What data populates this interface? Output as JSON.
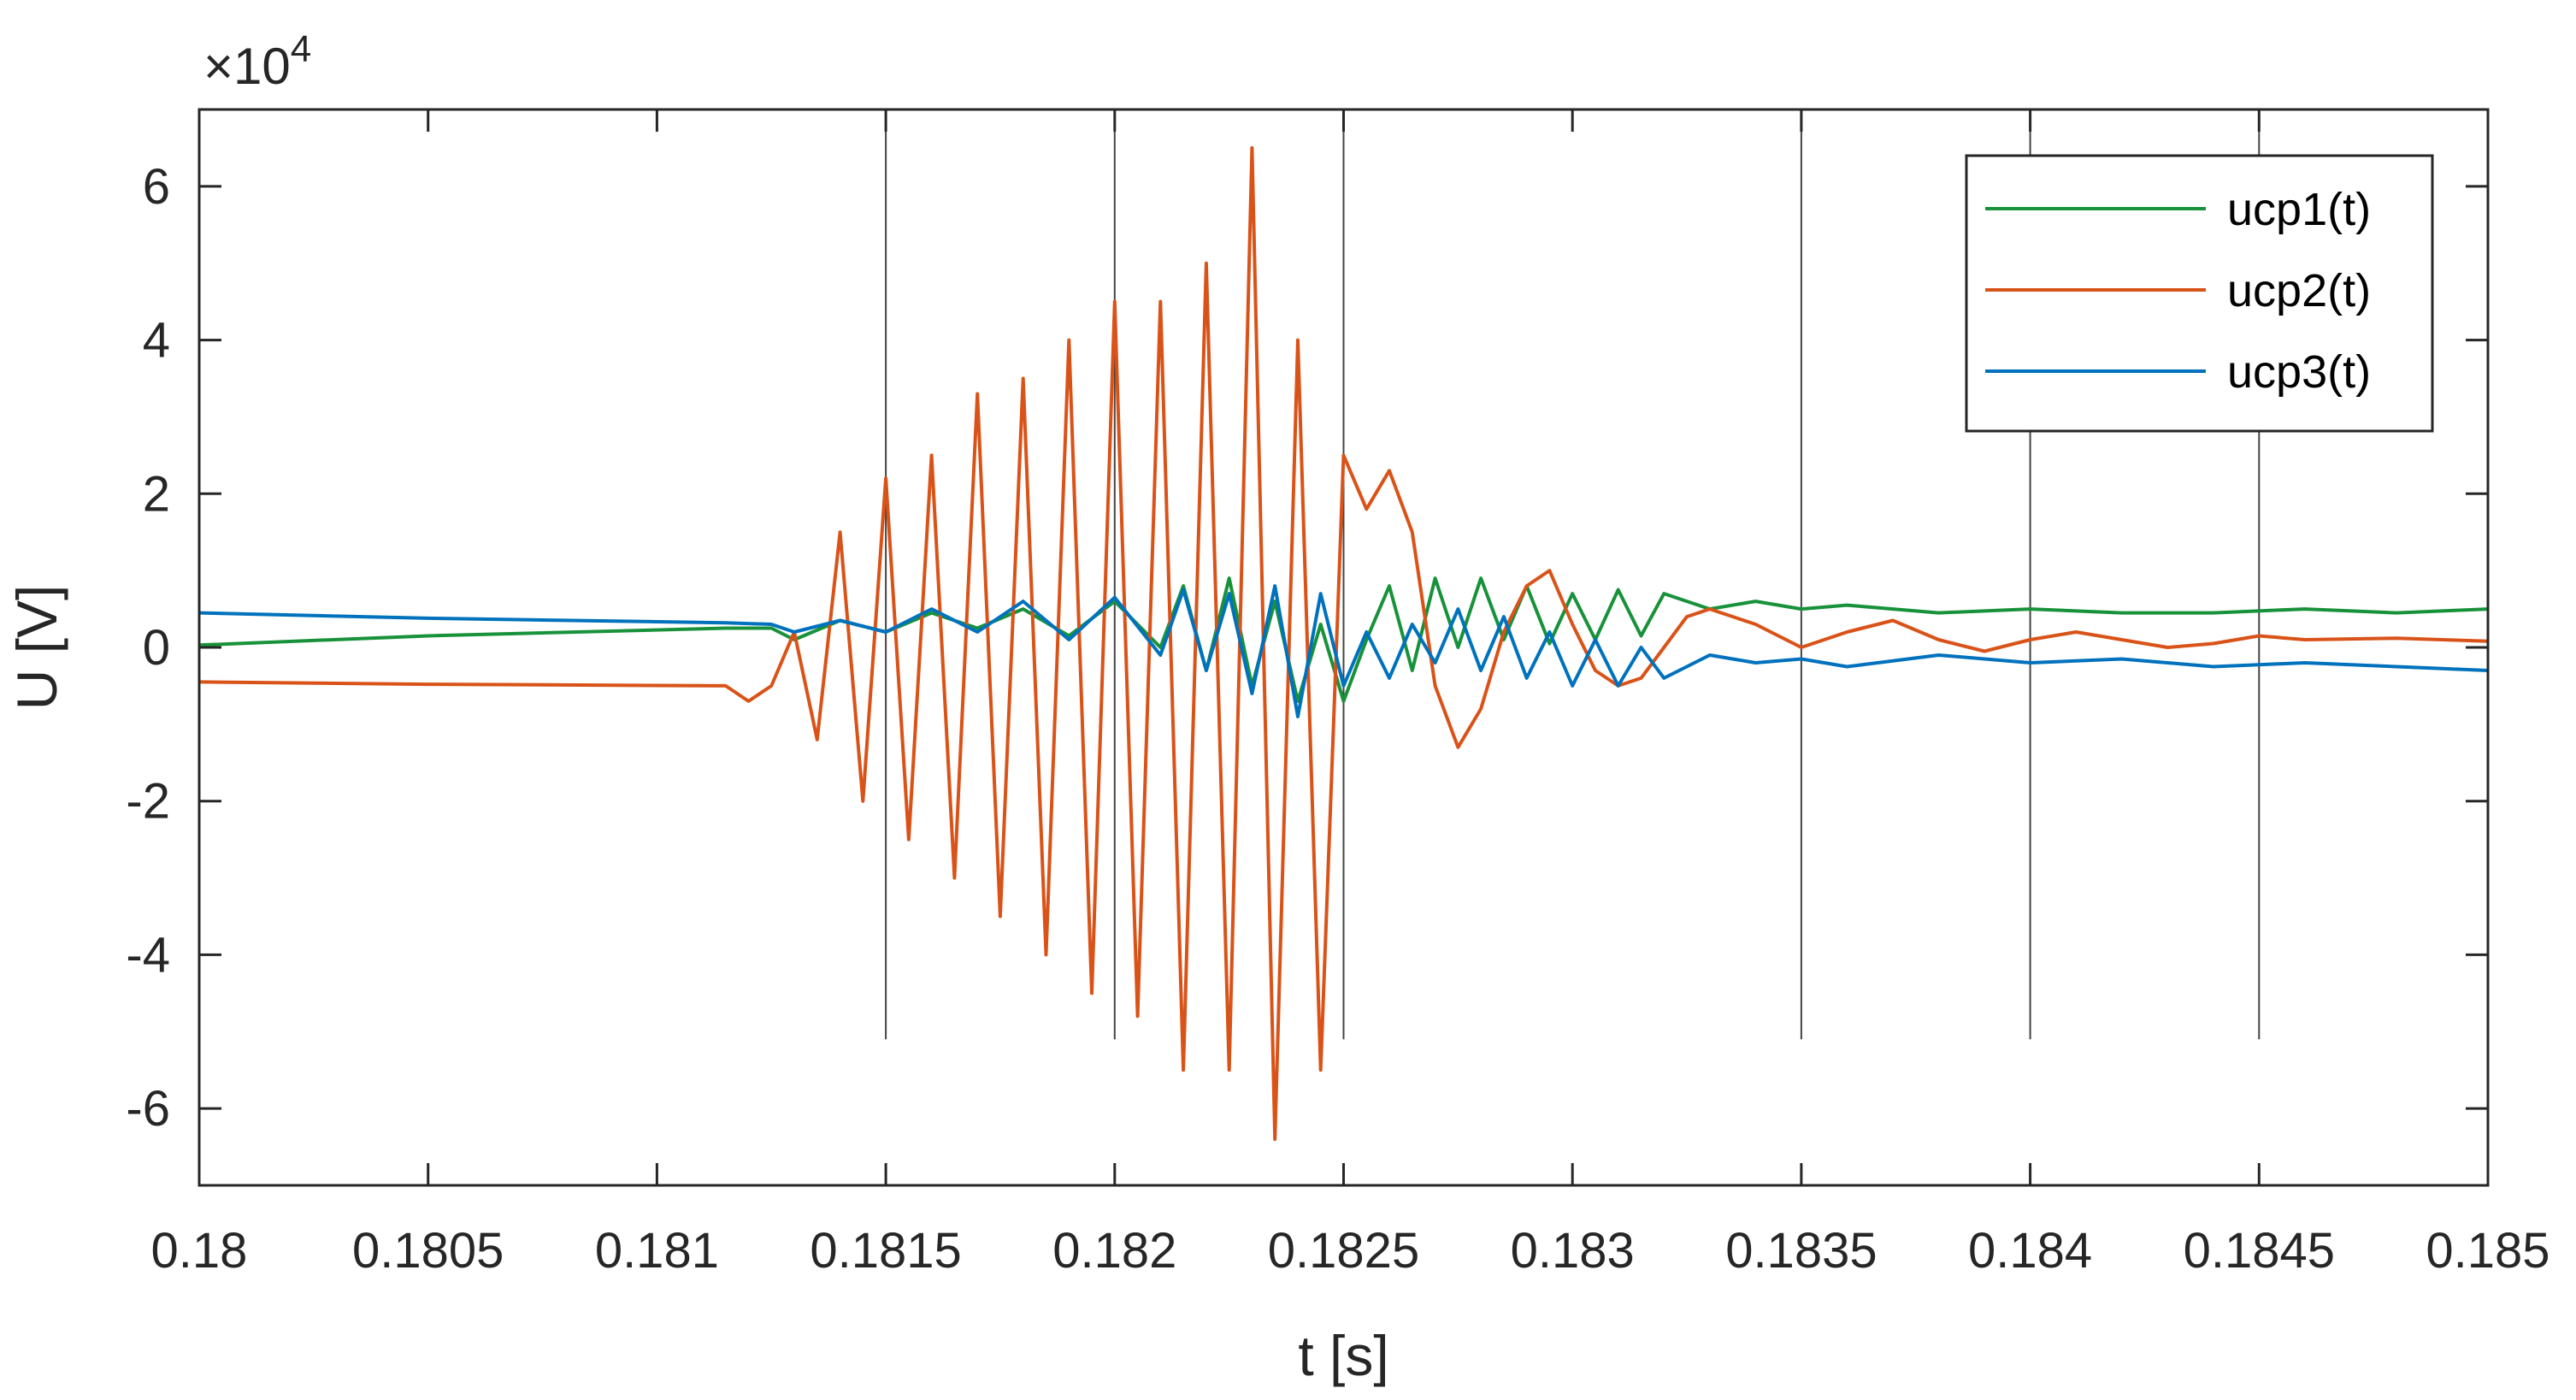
{
  "chart_data": {
    "type": "line",
    "title": "",
    "xlabel": "t [s]",
    "ylabel": "U [V]",
    "y_exponent_label": "×10",
    "y_exponent": "4",
    "xlim": [
      0.18,
      0.185
    ],
    "ylim": [
      -7,
      7
    ],
    "y_scale_factor": 10000,
    "x_ticks": [
      0.18,
      0.1805,
      0.181,
      0.1815,
      0.182,
      0.1825,
      0.183,
      0.1835,
      0.184,
      0.1845,
      0.185
    ],
    "x_tick_labels": [
      "0.18",
      "0.1805",
      "0.181",
      "0.1815",
      "0.182",
      "0.1825",
      "0.183",
      "0.1835",
      "0.184",
      "0.1845",
      "0.185"
    ],
    "y_ticks": [
      -6,
      -4,
      -2,
      0,
      2,
      4,
      6
    ],
    "y_tick_labels": [
      "-6",
      "-4",
      "-2",
      "0",
      "2",
      "4",
      "6"
    ],
    "vertical_markers": [
      0.1815,
      0.182,
      0.1825,
      0.1835,
      0.184,
      0.1845,
      0.185
    ],
    "vertical_marker_range": [
      -5.1,
      7
    ],
    "grid": false,
    "legend_position": "top-right",
    "series": [
      {
        "name": "ucp1(t)",
        "color": "#18923a",
        "x": [
          0.18,
          0.1805,
          0.18115,
          0.18125,
          0.1813,
          0.1814,
          0.1815,
          0.1816,
          0.1817,
          0.1818,
          0.1819,
          0.182,
          0.1821,
          0.18215,
          0.1822,
          0.18225,
          0.1823,
          0.18235,
          0.1824,
          0.18245,
          0.1825,
          0.18255,
          0.1826,
          0.18265,
          0.1827,
          0.18275,
          0.1828,
          0.18285,
          0.1829,
          0.18295,
          0.183,
          0.18305,
          0.1831,
          0.18315,
          0.1832,
          0.1833,
          0.1834,
          0.1835,
          0.1836,
          0.1838,
          0.184,
          0.1842,
          0.1844,
          0.1846,
          0.1848,
          0.185
        ],
        "y": [
          0.03,
          0.15,
          0.25,
          0.25,
          0.1,
          0.35,
          0.2,
          0.45,
          0.25,
          0.5,
          0.15,
          0.6,
          0.0,
          0.8,
          -0.3,
          0.9,
          -0.5,
          0.6,
          -0.7,
          0.3,
          -0.7,
          0.1,
          0.8,
          -0.3,
          0.9,
          0.0,
          0.9,
          0.1,
          0.8,
          0.05,
          0.7,
          0.1,
          0.75,
          0.15,
          0.7,
          0.5,
          0.6,
          0.5,
          0.55,
          0.45,
          0.5,
          0.45,
          0.45,
          0.5,
          0.45,
          0.5
        ]
      },
      {
        "name": "ucp2(t)",
        "color": "#d95319",
        "x": [
          0.18,
          0.1805,
          0.18115,
          0.1812,
          0.18125,
          0.1813,
          0.18135,
          0.1814,
          0.18145,
          0.1815,
          0.18155,
          0.1816,
          0.18165,
          0.1817,
          0.18175,
          0.1818,
          0.18185,
          0.1819,
          0.18195,
          0.182,
          0.18205,
          0.1821,
          0.18215,
          0.1822,
          0.18225,
          0.1823,
          0.18235,
          0.1824,
          0.18245,
          0.1825,
          0.18255,
          0.1826,
          0.18265,
          0.1827,
          0.18275,
          0.1828,
          0.18285,
          0.1829,
          0.18295,
          0.183,
          0.18305,
          0.1831,
          0.18315,
          0.1832,
          0.18325,
          0.1833,
          0.1834,
          0.1835,
          0.1836,
          0.1837,
          0.1838,
          0.1839,
          0.184,
          0.1841,
          0.1842,
          0.1843,
          0.1844,
          0.1845,
          0.1846,
          0.1848,
          0.185
        ],
        "y": [
          -0.45,
          -0.48,
          -0.5,
          -0.7,
          -0.5,
          0.2,
          -1.2,
          1.5,
          -2.0,
          2.2,
          -2.5,
          2.5,
          -3.0,
          3.3,
          -3.5,
          3.5,
          -4.0,
          4.0,
          -4.5,
          4.5,
          -4.8,
          4.5,
          -5.5,
          5.0,
          -5.5,
          6.5,
          -6.4,
          4.0,
          -5.5,
          2.5,
          1.8,
          2.3,
          1.5,
          -0.5,
          -1.3,
          -0.8,
          0.2,
          0.8,
          1.0,
          0.3,
          -0.3,
          -0.5,
          -0.4,
          0.0,
          0.4,
          0.5,
          0.3,
          0.0,
          0.2,
          0.35,
          0.1,
          -0.05,
          0.1,
          0.2,
          0.1,
          0.0,
          0.05,
          0.15,
          0.1,
          0.12,
          0.08
        ]
      },
      {
        "name": "ucp3(t)",
        "color": "#0072bd",
        "x": [
          0.18,
          0.1805,
          0.18115,
          0.18125,
          0.1813,
          0.1814,
          0.1815,
          0.1816,
          0.1817,
          0.1818,
          0.1819,
          0.182,
          0.1821,
          0.18215,
          0.1822,
          0.18225,
          0.1823,
          0.18235,
          0.1824,
          0.18245,
          0.1825,
          0.18255,
          0.1826,
          0.18265,
          0.1827,
          0.18275,
          0.1828,
          0.18285,
          0.1829,
          0.18295,
          0.183,
          0.18305,
          0.1831,
          0.18315,
          0.1832,
          0.1833,
          0.1834,
          0.1835,
          0.1836,
          0.1838,
          0.184,
          0.1842,
          0.1844,
          0.1846,
          0.1848,
          0.185
        ],
        "y": [
          0.45,
          0.38,
          0.32,
          0.3,
          0.2,
          0.35,
          0.2,
          0.5,
          0.2,
          0.6,
          0.1,
          0.65,
          -0.1,
          0.75,
          -0.3,
          0.7,
          -0.6,
          0.8,
          -0.9,
          0.7,
          -0.5,
          0.2,
          -0.4,
          0.3,
          -0.2,
          0.5,
          -0.3,
          0.4,
          -0.4,
          0.2,
          -0.5,
          0.1,
          -0.5,
          0.0,
          -0.4,
          -0.1,
          -0.2,
          -0.15,
          -0.25,
          -0.1,
          -0.2,
          -0.15,
          -0.25,
          -0.2,
          -0.25,
          -0.3
        ]
      }
    ]
  }
}
